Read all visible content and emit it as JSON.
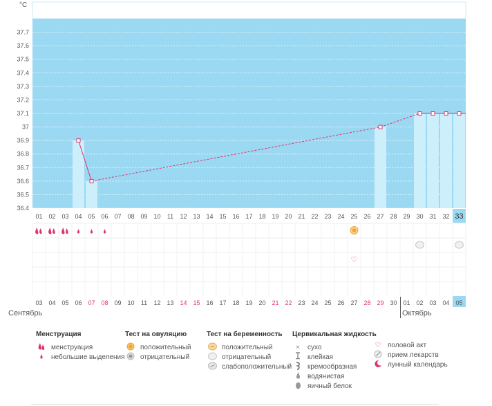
{
  "chart_data": {
    "type": "line",
    "unit_label": "°C",
    "ylim": [
      36.4,
      37.8
    ],
    "y_ticks": [
      "37.7",
      "37.6",
      "37.5",
      "37.4",
      "37.3",
      "37.2",
      "37.1",
      "37",
      "36.9",
      "36.8",
      "36.7",
      "36.6",
      "36.5",
      "36.4"
    ],
    "cycle_days": [
      "01",
      "02",
      "03",
      "04",
      "05",
      "06",
      "07",
      "08",
      "09",
      "10",
      "11",
      "12",
      "13",
      "14",
      "15",
      "16",
      "17",
      "18",
      "19",
      "20",
      "21",
      "22",
      "23",
      "24",
      "25",
      "26",
      "27",
      "28",
      "29",
      "30",
      "31",
      "32",
      "33"
    ],
    "current_day_index": 32,
    "measurements": [
      {
        "day": 4,
        "value": 36.9
      },
      {
        "day": 5,
        "value": 36.6
      },
      {
        "day": 27,
        "value": 37.0
      },
      {
        "day": 30,
        "value": 37.1
      },
      {
        "day": 31,
        "value": 37.1
      },
      {
        "day": 32,
        "value": 37.1
      },
      {
        "day": 33,
        "value": 37.1
      }
    ],
    "dates": [
      {
        "label": "03",
        "weekend": false
      },
      {
        "label": "04",
        "weekend": false
      },
      {
        "label": "05",
        "weekend": false
      },
      {
        "label": "06",
        "weekend": false
      },
      {
        "label": "07",
        "weekend": true
      },
      {
        "label": "08",
        "weekend": true
      },
      {
        "label": "09",
        "weekend": false
      },
      {
        "label": "10",
        "weekend": false
      },
      {
        "label": "11",
        "weekend": false
      },
      {
        "label": "12",
        "weekend": false
      },
      {
        "label": "13",
        "weekend": false
      },
      {
        "label": "14",
        "weekend": true
      },
      {
        "label": "15",
        "weekend": true
      },
      {
        "label": "16",
        "weekend": false
      },
      {
        "label": "17",
        "weekend": false
      },
      {
        "label": "18",
        "weekend": false
      },
      {
        "label": "19",
        "weekend": false
      },
      {
        "label": "20",
        "weekend": false
      },
      {
        "label": "21",
        "weekend": true
      },
      {
        "label": "22",
        "weekend": true
      },
      {
        "label": "23",
        "weekend": false
      },
      {
        "label": "24",
        "weekend": false
      },
      {
        "label": "25",
        "weekend": false
      },
      {
        "label": "26",
        "weekend": false
      },
      {
        "label": "27",
        "weekend": false
      },
      {
        "label": "28",
        "weekend": true
      },
      {
        "label": "29",
        "weekend": true
      },
      {
        "label": "30",
        "weekend": false
      },
      {
        "label": "01",
        "weekend": false
      },
      {
        "label": "02",
        "weekend": false
      },
      {
        "label": "03",
        "weekend": false
      },
      {
        "label": "04",
        "weekend": false
      },
      {
        "label": "05",
        "weekend": false
      }
    ],
    "months": [
      {
        "label": "Сентябрь",
        "start_day": 1
      },
      {
        "label": "Октябрь",
        "start_day": 29
      }
    ],
    "markers": {
      "menstruation_heavy_days": [
        1,
        2,
        3
      ],
      "menstruation_light_days": [
        4,
        5,
        6
      ],
      "ovulation_positive_days": [
        25
      ],
      "pregnancy_test_days": [
        30,
        33
      ],
      "intercourse_days": [
        25
      ]
    },
    "colors": {
      "plot_bg": "#9bd8f2",
      "bar": "#cdeefb",
      "line": "#e0336e",
      "weekend": "#e0336e",
      "current": "#9bd8f2"
    }
  },
  "legend": {
    "menstruation": {
      "title": "Менструация",
      "items": [
        {
          "icon": "drop-heavy-icon",
          "label": "менструация"
        },
        {
          "icon": "drop-light-icon",
          "label": "небольшие выделения"
        }
      ]
    },
    "ovulation_test": {
      "title": "Тест на овуляцию",
      "items": [
        {
          "icon": "ovulation-positive-icon",
          "label": "положительный"
        },
        {
          "icon": "ovulation-negative-icon",
          "label": "отрицательный"
        }
      ]
    },
    "pregnancy_test": {
      "title": "Тест на беременность",
      "items": [
        {
          "icon": "pregnancy-positive-icon",
          "label": "положительный"
        },
        {
          "icon": "pregnancy-negative-icon",
          "label": "отрицательный"
        },
        {
          "icon": "pregnancy-weak-icon",
          "label": "слабоположительный"
        }
      ]
    },
    "cervical_fluid": {
      "title": "Цервикальная жидкость",
      "items": [
        {
          "icon": "dry-icon",
          "label": "сухо"
        },
        {
          "icon": "sticky-icon",
          "label": "клейкая"
        },
        {
          "icon": "creamy-icon",
          "label": "кремообразная"
        },
        {
          "icon": "watery-icon",
          "label": "водянистая"
        },
        {
          "icon": "eggwhite-icon",
          "label": "яичный белок"
        }
      ]
    },
    "other": {
      "items": [
        {
          "icon": "heart-icon",
          "label": "половой акт"
        },
        {
          "icon": "pill-icon",
          "label": "прием лекарств"
        },
        {
          "icon": "moon-icon",
          "label": "лунный календарь"
        }
      ]
    }
  }
}
